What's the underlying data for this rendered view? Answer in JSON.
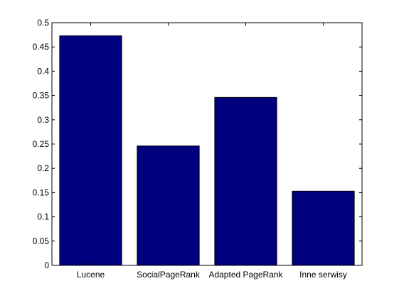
{
  "chart_data": {
    "type": "bar",
    "categories": [
      "Lucene",
      "SocialPageRank",
      "Adapted PageRank",
      "Inne serwisy"
    ],
    "values": [
      0.473,
      0.246,
      0.346,
      0.153
    ],
    "ylim": [
      0,
      0.5
    ],
    "yticks": [
      0,
      0.05,
      0.1,
      0.15,
      0.2,
      0.25,
      0.3,
      0.35,
      0.4,
      0.45,
      0.5
    ],
    "ytick_labels": [
      "0",
      "0.05",
      "0.1",
      "0.15",
      "0.2",
      "0.25",
      "0.3",
      "0.35",
      "0.4",
      "0.45",
      "0.5"
    ],
    "bar_color": "#00007f",
    "background": "#ffffff",
    "grid": false,
    "title": "",
    "xlabel": "",
    "ylabel": ""
  }
}
